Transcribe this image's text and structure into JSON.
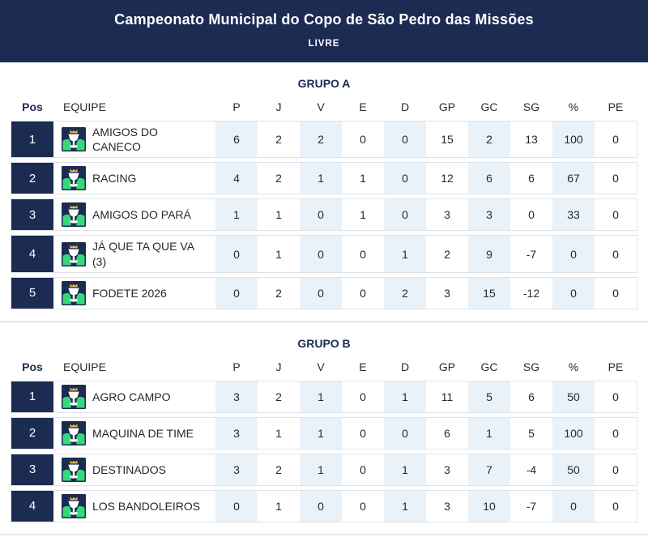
{
  "header": {
    "title": "Campeonato Municipal do Copo de São Pedro das Missões",
    "subtitle": "LIVRE"
  },
  "columns": [
    "Pos",
    "EQUIPE",
    "P",
    "J",
    "V",
    "E",
    "D",
    "GP",
    "GC",
    "SG",
    "%",
    "PE"
  ],
  "groups": [
    {
      "name": "GRUPO A",
      "rows": [
        {
          "pos": "1",
          "team": "AMIGOS DO CANECO",
          "stats": [
            "6",
            "2",
            "2",
            "0",
            "0",
            "15",
            "2",
            "13",
            "100",
            "0"
          ]
        },
        {
          "pos": "2",
          "team": "RACING",
          "stats": [
            "4",
            "2",
            "1",
            "1",
            "0",
            "12",
            "6",
            "6",
            "67",
            "0"
          ]
        },
        {
          "pos": "3",
          "team": "AMIGOS DO PARÁ",
          "stats": [
            "1",
            "1",
            "0",
            "1",
            "0",
            "3",
            "3",
            "0",
            "33",
            "0"
          ]
        },
        {
          "pos": "4",
          "team": "JÁ QUE TA QUE VA (3)",
          "stats": [
            "0",
            "1",
            "0",
            "0",
            "1",
            "2",
            "9",
            "-7",
            "0",
            "0"
          ]
        },
        {
          "pos": "5",
          "team": "FODETE 2026",
          "stats": [
            "0",
            "2",
            "0",
            "0",
            "2",
            "3",
            "15",
            "-12",
            "0",
            "0"
          ]
        }
      ]
    },
    {
      "name": "GRUPO B",
      "rows": [
        {
          "pos": "1",
          "team": "AGRO CAMPO",
          "stats": [
            "3",
            "2",
            "1",
            "0",
            "1",
            "11",
            "5",
            "6",
            "50",
            "0"
          ]
        },
        {
          "pos": "2",
          "team": "MAQUINA DE TIME",
          "stats": [
            "3",
            "1",
            "1",
            "0",
            "0",
            "6",
            "1",
            "5",
            "100",
            "0"
          ]
        },
        {
          "pos": "3",
          "team": "DESTINADOS",
          "stats": [
            "3",
            "2",
            "1",
            "0",
            "1",
            "3",
            "7",
            "-4",
            "50",
            "0"
          ]
        },
        {
          "pos": "4",
          "team": "LOS BANDOLEIROS",
          "stats": [
            "0",
            "1",
            "0",
            "0",
            "1",
            "3",
            "10",
            "-7",
            "0",
            "0"
          ]
        }
      ]
    }
  ],
  "icons": {
    "team_badge": "trophy-crown-badge-icon"
  },
  "colors": {
    "navy": "#1c2b52",
    "stripe_blue": "#e9f2f9",
    "row_border": "#dfe3e8",
    "badge_green": "#35d97b",
    "badge_gold": "#f5c33b",
    "text_dark": "#24292e"
  }
}
